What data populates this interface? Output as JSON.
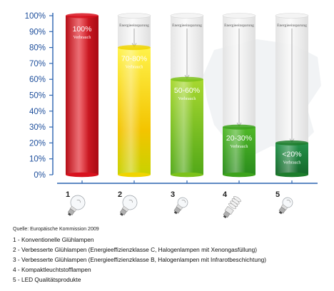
{
  "chart_data": {
    "type": "bar",
    "title": "",
    "xlabel": "",
    "ylabel": "",
    "ylim": [
      0,
      100
    ],
    "yticks": [
      "0%",
      "10%",
      "20%",
      "30%",
      "40%",
      "50%",
      "60%",
      "70%",
      "80%",
      "90%",
      "100%"
    ],
    "categories": [
      "1",
      "2",
      "3",
      "4",
      "5"
    ],
    "values": [
      100,
      80,
      60,
      30,
      20
    ],
    "lower_values": [
      100,
      70,
      50,
      20,
      20
    ],
    "value_labels": [
      "100%",
      "70-80%",
      "50-60%",
      "20-30%",
      "<20%"
    ],
    "bar_sublabel": "Verbrauch",
    "saving_label": "Energieeinsparung",
    "colors": {
      "bar1": "#d8121e",
      "bar2": "#f0d400",
      "bar3": "#7cc21a",
      "bar4": "#3da31c",
      "bar5": "#1d7d2c",
      "axis": "#2b63b0"
    }
  },
  "legend": {
    "source": "Quelle: Europäische Kommission 2009",
    "items": [
      "1 - Konventionelle Glühlampen",
      "2 - Verbesserte Glühlampen (Energieeffizienzklasse C, Halogenlampen mit Xenongasfüllung)",
      "3 - Verbesserte Glühlampen (Energieeffizienzklasse B, Halogenlampen mit Infrarotbeschichtung)",
      "4 - Kompaktleuchtstofflampen",
      "5 - LED Qualitätsprodukte"
    ]
  }
}
